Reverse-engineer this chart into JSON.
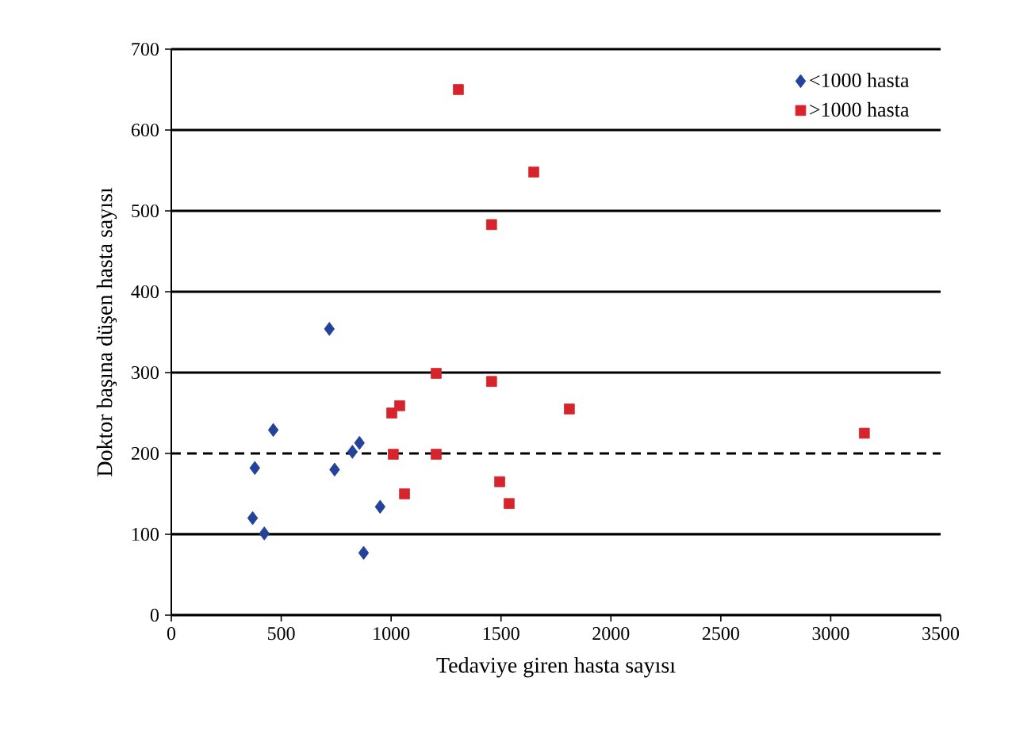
{
  "chart_data": {
    "type": "scatter",
    "xlabel": "Tedaviye giren hasta sayısı",
    "ylabel": "Doktor başına düşen hasta sayısı",
    "xlim": [
      0,
      3500
    ],
    "xticks": [
      0,
      500,
      1000,
      1500,
      2000,
      2500,
      3000,
      3500
    ],
    "ylim": [
      0,
      700
    ],
    "yticks": [
      0,
      100,
      200,
      300,
      400,
      500,
      600,
      700
    ],
    "grid": "y",
    "legend": "top right",
    "ref_lines": [
      {
        "axis": "y",
        "value": 200,
        "line_style": "dashed",
        "color": "#000000"
      }
    ],
    "series": [
      {
        "name": "<1000 hasta",
        "color": "#24429a",
        "marker": "diamond",
        "x": [
          719,
          464,
          380,
          743,
          856,
          824,
          370,
          423,
          950,
          875
        ],
        "values": [
          354,
          229,
          182,
          180,
          213,
          202,
          120,
          101,
          134,
          77
        ]
      },
      {
        "name": ">1000 hasta",
        "color": "#d7242c",
        "marker": "square",
        "x": [
          1205,
          1457,
          1039,
          1003,
          1811,
          1010,
          1205,
          1061,
          1494,
          1537,
          1306,
          1649,
          1457,
          3153
        ],
        "values": [
          299,
          289,
          259,
          250,
          255,
          199,
          199,
          150,
          165,
          138,
          650,
          548,
          483,
          225
        ]
      }
    ]
  }
}
